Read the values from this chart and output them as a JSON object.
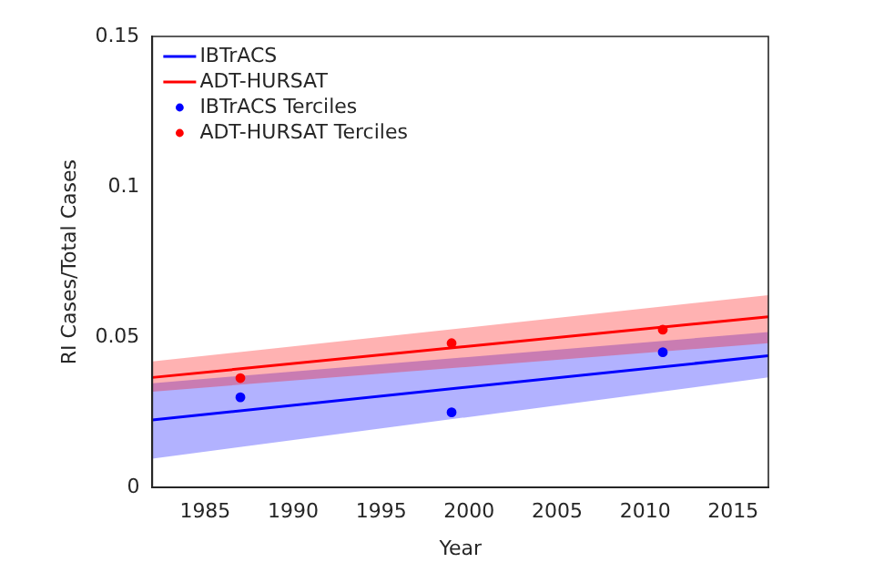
{
  "chart_data": {
    "type": "line",
    "xlabel": "Year",
    "ylabel": "RI Cases/Total Cases",
    "xlim": [
      1982,
      2017
    ],
    "xticks": [
      1985,
      1990,
      1995,
      2000,
      2005,
      2010,
      2015
    ],
    "ylim": [
      0,
      0.15
    ],
    "yticks": [
      0,
      0.05,
      0.1,
      0.15
    ],
    "grid": false,
    "legend": "top left",
    "series": [
      {
        "name": "IBTrACS",
        "color": "#0000ff",
        "x": [
          1982,
          2017
        ],
        "values": [
          0.0225,
          0.0438
        ],
        "lower": [
          0.0096,
          0.0366
        ],
        "upper": [
          0.0347,
          0.0517
        ]
      },
      {
        "name": "ADT-HURSAT",
        "color": "#ff0000",
        "x": [
          1982,
          2017
        ],
        "values": [
          0.0366,
          0.0568
        ],
        "lower": [
          0.0319,
          0.048
        ],
        "upper": [
          0.0419,
          0.064
        ]
      },
      {
        "name": "IBTrACS Terciles",
        "type": "scatter",
        "marker": "circle",
        "color": "#0000ff",
        "x": [
          1987,
          1999,
          2011
        ],
        "values": [
          0.03,
          0.025,
          0.045
        ]
      },
      {
        "name": "ADT-HURSAT Terciles",
        "type": "scatter",
        "marker": "circle",
        "color": "#ff0000",
        "x": [
          1987,
          1999,
          2011
        ],
        "values": [
          0.0364,
          0.048,
          0.0525
        ]
      }
    ]
  }
}
